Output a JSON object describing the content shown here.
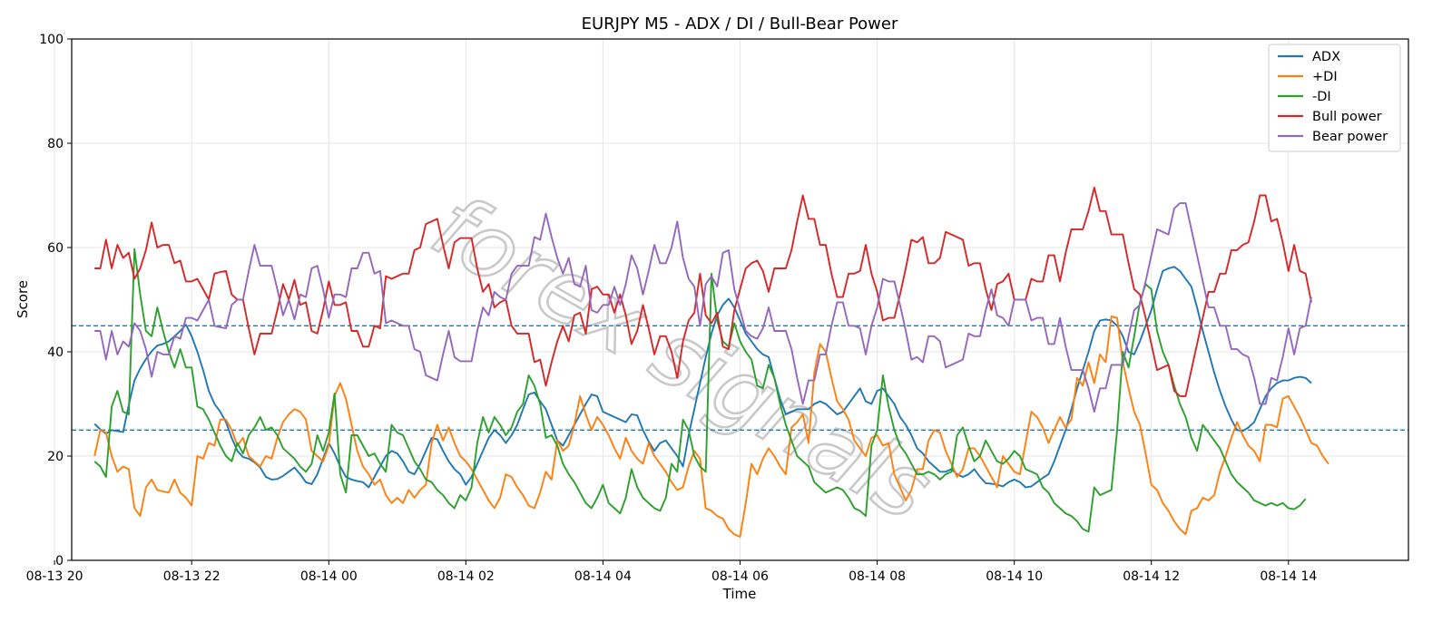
{
  "chart_data": {
    "type": "line",
    "title": "EURJPY M5 - ADX / DI / Bull-Bear Power",
    "xlabel": "Time",
    "ylabel": "Score",
    "ylim": [
      0,
      100
    ],
    "yticks": [
      0,
      20,
      40,
      60,
      80,
      100
    ],
    "x_start": "2025-08-13 20:35",
    "x_step_minutes": 5,
    "xlim": [
      "2025-08-13 20:15",
      "2025-08-14 15:45"
    ],
    "xticks": [
      {
        "t": "2025-08-13 20:00",
        "label": "08-13 20"
      },
      {
        "t": "2025-08-13 22:00",
        "label": "08-13 22"
      },
      {
        "t": "2025-08-14 00:00",
        "label": "08-14 00"
      },
      {
        "t": "2025-08-14 02:00",
        "label": "08-14 02"
      },
      {
        "t": "2025-08-14 04:00",
        "label": "08-14 04"
      },
      {
        "t": "2025-08-14 06:00",
        "label": "08-14 06"
      },
      {
        "t": "2025-08-14 08:00",
        "label": "08-14 08"
      },
      {
        "t": "2025-08-14 10:00",
        "label": "08-14 10"
      },
      {
        "t": "2025-08-14 12:00",
        "label": "08-14 12"
      },
      {
        "t": "2025-08-14 14:00",
        "label": "08-14 14"
      }
    ],
    "grid": true,
    "legend_position": "top-right",
    "reference_lines": [
      {
        "y": 45,
        "style": "dashed",
        "color": "#1f77b4"
      },
      {
        "y": 25,
        "style": "dashed",
        "color": "#1f77b4"
      }
    ],
    "watermark": "forex signals",
    "series": [
      {
        "name": "ADX",
        "color": "#1f77b4",
        "values": [
          26.2,
          25.1,
          24.3,
          25.0,
          24.8,
          24.6,
          29.8,
          34.5,
          36.8,
          38.6,
          40.1,
          41.2,
          41.5,
          42.0,
          43.0,
          44.0,
          45.2,
          43.0,
          40.0,
          36.5,
          32.5,
          30.0,
          28.5,
          26.5,
          23.5,
          21.0,
          19.8,
          19.5,
          18.8,
          17.8,
          16.0,
          15.5,
          15.6,
          16.2,
          17.0,
          17.8,
          16.5,
          15.0,
          14.6,
          16.5,
          19.5,
          22.5,
          20.5,
          18.0,
          16.0,
          15.5,
          15.2,
          15.0,
          14.0,
          16.0,
          18.0,
          20.0,
          21.0,
          20.5,
          19.0,
          17.0,
          16.5,
          18.5,
          21.0,
          23.5,
          23.2,
          21.0,
          19.0,
          17.5,
          16.5,
          14.5,
          16.0,
          18.5,
          21.0,
          23.5,
          25.0,
          24.0,
          22.5,
          24.0,
          26.0,
          29.0,
          31.8,
          32.2,
          30.5,
          29.0,
          26.0,
          23.0,
          22.0,
          24.0,
          26.0,
          28.0,
          30.0,
          31.8,
          31.5,
          28.5,
          28.0,
          27.5,
          27.0,
          26.5,
          28.0,
          27.8,
          25.0,
          22.8,
          21.0,
          22.5,
          23.0,
          21.5,
          20.0,
          18.0,
          24.0,
          29.0,
          34.0,
          39.0,
          43.5,
          47.0,
          49.0,
          50.2,
          48.5,
          46.0,
          43.5,
          42.0,
          40.5,
          39.5,
          39.0,
          35.0,
          31.0,
          28.0,
          28.5,
          29.0,
          29.0,
          29.0,
          30.0,
          30.5,
          30.0,
          29.0,
          28.0,
          28.5,
          30.0,
          31.5,
          33.0,
          30.5,
          30.0,
          32.5,
          33.0,
          31.5,
          30.0,
          27.5,
          26.0,
          24.0,
          21.5,
          20.5,
          19.0,
          18.0,
          17.0,
          17.0,
          17.5,
          16.5,
          16.0,
          16.5,
          17.5,
          16.0,
          14.8,
          14.7,
          14.5,
          14.2,
          15.0,
          15.5,
          15.0,
          14.0,
          14.2,
          15.0,
          15.8,
          16.5,
          19.0,
          22.0,
          25.0,
          29.0,
          33.0,
          36.5,
          40.0,
          44.0,
          46.0,
          46.2,
          46.0,
          45.0,
          43.0,
          40.0,
          39.5,
          42.0,
          45.0,
          48.0,
          52.0,
          55.5,
          56.0,
          56.3,
          55.5,
          54.0,
          52.5,
          48.5,
          44.0,
          40.0,
          36.0,
          32.5,
          29.5,
          27.0,
          25.0,
          24.8,
          25.5,
          26.5,
          29.0,
          31.5,
          33.0,
          34.0,
          34.5,
          34.5,
          35.0,
          35.2,
          35.0,
          34.0
        ]
      },
      {
        "name": "+DI",
        "color": "#ff7f0e",
        "values": [
          20.0,
          25.0,
          24.5,
          20.0,
          17.0,
          18.0,
          17.5,
          10.0,
          8.5,
          14.0,
          15.5,
          13.5,
          13.2,
          13.0,
          15.5,
          13.0,
          12.0,
          10.5,
          20.0,
          19.5,
          22.5,
          22.0,
          27.0,
          27.0,
          25.0,
          22.0,
          23.5,
          20.0,
          19.0,
          18.0,
          20.0,
          19.5,
          23.5,
          26.5,
          28.0,
          29.0,
          28.5,
          27.0,
          21.0,
          20.0,
          19.0,
          22.0,
          31.5,
          34.0,
          31.0,
          26.0,
          21.0,
          18.0,
          16.5,
          14.5,
          15.5,
          12.5,
          11.0,
          12.0,
          11.0,
          13.5,
          12.0,
          13.5,
          14.5,
          22.5,
          26.0,
          23.0,
          25.5,
          22.5,
          20.0,
          19.0,
          17.5,
          15.5,
          13.5,
          11.5,
          10.0,
          12.0,
          16.5,
          16.0,
          14.0,
          12.5,
          10.5,
          10.0,
          13.0,
          17.0,
          15.5,
          23.0,
          21.0,
          22.0,
          26.0,
          31.5,
          28.0,
          25.0,
          27.5,
          26.0,
          24.0,
          21.5,
          19.5,
          23.5,
          21.0,
          19.5,
          18.5,
          22.5,
          20.0,
          18.5,
          17.0,
          15.0,
          13.5,
          14.0,
          18.0,
          21.0,
          19.5,
          10.0,
          9.5,
          8.5,
          8.0,
          6.0,
          5.0,
          4.5,
          11.0,
          18.5,
          16.5,
          19.5,
          21.5,
          20.0,
          18.0,
          16.5,
          25.5,
          26.5,
          28.0,
          22.5,
          36.0,
          41.5,
          40.0,
          35.0,
          30.5,
          29.0,
          27.0,
          23.0,
          21.5,
          20.0,
          23.5,
          24.0,
          22.0,
          22.5,
          16.5,
          14.0,
          11.5,
          13.5,
          17.5,
          17.5,
          23.0,
          25.0,
          24.5,
          21.0,
          18.5,
          16.0,
          17.5,
          21.5,
          21.5,
          20.0,
          18.0,
          16.0,
          14.0,
          20.0,
          18.5,
          17.0,
          16.5,
          22.5,
          28.5,
          27.5,
          25.5,
          22.5,
          25.0,
          27.5,
          25.5,
          27.0,
          35.0,
          33.5,
          38.0,
          34.0,
          39.5,
          38.0,
          46.8,
          46.5,
          38.0,
          33.0,
          28.5,
          26.0,
          20.5,
          14.5,
          13.5,
          11.0,
          9.5,
          7.5,
          6.0,
          5.0,
          9.5,
          10.0,
          12.0,
          11.5,
          12.5,
          17.0,
          20.0,
          23.5,
          26.5,
          24.0,
          22.0,
          21.0,
          19.0,
          26.0,
          26.0,
          25.5,
          31.0,
          31.5,
          29.5,
          27.5,
          25.0,
          22.5,
          22.0,
          20.0,
          18.5
        ]
      },
      {
        "name": "-DI",
        "color": "#2ca02c",
        "values": [
          19.0,
          18.0,
          16.0,
          29.5,
          32.5,
          28.5,
          28.0,
          59.7,
          51.0,
          44.0,
          43.0,
          48.5,
          44.0,
          40.0,
          37.0,
          40.5,
          37.0,
          37.0,
          29.5,
          29.0,
          27.0,
          24.5,
          22.0,
          20.0,
          19.0,
          22.5,
          20.5,
          24.0,
          25.5,
          27.5,
          25.0,
          25.5,
          24.0,
          21.5,
          20.5,
          19.5,
          18.0,
          17.0,
          18.5,
          24.0,
          21.0,
          24.5,
          32.0,
          16.5,
          13.0,
          24.0,
          24.0,
          22.0,
          20.0,
          20.5,
          18.5,
          17.0,
          26.0,
          24.5,
          24.0,
          21.5,
          19.0,
          17.5,
          15.5,
          15.0,
          13.5,
          12.5,
          11.0,
          10.0,
          12.5,
          11.5,
          14.0,
          22.5,
          27.5,
          24.5,
          27.5,
          26.0,
          24.0,
          25.5,
          28.5,
          30.0,
          35.5,
          33.5,
          30.0,
          23.5,
          24.0,
          22.0,
          18.5,
          16.5,
          15.0,
          13.0,
          11.0,
          10.0,
          12.0,
          14.5,
          11.0,
          10.0,
          9.0,
          12.0,
          17.5,
          14.0,
          12.0,
          11.0,
          10.0,
          9.5,
          12.0,
          18.5,
          17.0,
          27.0,
          25.0,
          20.0,
          18.0,
          17.0,
          55.0,
          46.0,
          42.0,
          41.0,
          45.5,
          42.0,
          40.0,
          38.5,
          33.5,
          33.0,
          37.5,
          35.0,
          30.0,
          26.0,
          23.0,
          20.0,
          19.0,
          18.0,
          15.0,
          14.0,
          13.0,
          13.5,
          14.0,
          13.5,
          12.0,
          10.0,
          9.5,
          8.5,
          22.0,
          25.0,
          35.5,
          29.5,
          25.0,
          22.0,
          20.5,
          18.5,
          16.5,
          16.5,
          17.0,
          16.5,
          15.5,
          16.5,
          17.0,
          24.0,
          25.5,
          22.0,
          19.0,
          20.0,
          23.0,
          21.0,
          19.0,
          18.5,
          19.5,
          21.0,
          20.0,
          17.5,
          17.0,
          16.5,
          14.0,
          13.0,
          11.0,
          10.0,
          9.0,
          8.5,
          7.5,
          6.0,
          5.5,
          14.0,
          12.5,
          13.0,
          13.5,
          25.0,
          40.0,
          37.0,
          43.0,
          49.5,
          53.0,
          52.0,
          44.0,
          40.0,
          37.5,
          33.5,
          30.0,
          27.5,
          23.5,
          21.0,
          26.0,
          24.5,
          23.0,
          21.5,
          19.0,
          16.5,
          15.0,
          14.0,
          13.0,
          11.5,
          11.0,
          10.5,
          11.0,
          10.5,
          11.0,
          10.0,
          9.8,
          10.5,
          11.8
        ]
      },
      {
        "name": "Bull power",
        "color": "#d62728",
        "values": [
          56.0,
          56.0,
          61.5,
          56.0,
          60.5,
          58.0,
          59.0,
          54.0,
          56.0,
          59.5,
          64.8,
          60.0,
          60.5,
          60.5,
          57.0,
          57.5,
          53.5,
          53.5,
          54.0,
          52.0,
          50.0,
          55.0,
          55.3,
          55.5,
          51.0,
          50.0,
          50.0,
          44.5,
          39.5,
          43.5,
          43.5,
          43.5,
          48.0,
          53.0,
          50.0,
          53.8,
          49.0,
          49.5,
          44.0,
          43.5,
          48.0,
          53.5,
          49.0,
          49.0,
          49.5,
          44.0,
          44.0,
          41.0,
          41.0,
          45.0,
          44.5,
          54.5,
          54.0,
          54.5,
          55.0,
          55.0,
          59.5,
          60.0,
          64.5,
          65.0,
          65.5,
          60.5,
          56.0,
          61.0,
          61.8,
          61.8,
          61.8,
          56.0,
          51.5,
          53.0,
          48.5,
          49.5,
          50.0,
          45.0,
          43.5,
          43.5,
          43.5,
          38.0,
          38.5,
          33.5,
          38.0,
          42.0,
          45.0,
          42.0,
          47.0,
          47.5,
          43.5,
          52.0,
          52.5,
          51.0,
          51.0,
          47.5,
          51.0,
          47.0,
          41.5,
          44.0,
          49.0,
          44.5,
          39.5,
          43.0,
          43.0,
          40.0,
          35.0,
          42.0,
          46.0,
          47.5,
          55.0,
          47.0,
          45.5,
          47.5,
          41.0,
          40.5,
          48.0,
          52.0,
          56.0,
          57.0,
          57.5,
          55.5,
          51.5,
          56.0,
          56.0,
          56.0,
          59.5,
          65.0,
          70.0,
          65.5,
          65.5,
          60.5,
          60.5,
          55.0,
          50.5,
          50.5,
          55.0,
          55.0,
          55.5,
          60.5,
          55.0,
          51.5,
          46.0,
          46.5,
          46.5,
          51.0,
          56.0,
          61.5,
          61.0,
          62.0,
          57.0,
          57.0,
          58.0,
          63.0,
          62.5,
          62.0,
          61.5,
          56.5,
          57.0,
          57.0,
          52.0,
          48.0,
          53.0,
          53.5,
          55.0,
          50.0,
          50.0,
          50.0,
          54.0,
          53.5,
          53.5,
          58.5,
          58.5,
          53.5,
          59.0,
          63.5,
          63.5,
          63.5,
          67.0,
          71.5,
          67.0,
          67.0,
          62.5,
          62.5,
          62.5,
          57.0,
          52.0,
          51.0,
          46.5,
          41.5,
          36.5,
          37.0,
          37.5,
          32.5,
          31.5,
          31.5,
          36.5,
          41.5,
          46.5,
          51.5,
          51.5,
          55.0,
          55.0,
          59.5,
          59.5,
          60.5,
          61.0,
          65.0,
          70.0,
          70.0,
          65.0,
          65.5,
          61.0,
          55.5,
          60.5,
          55.5,
          55.0,
          49.5
        ]
      },
      {
        "name": "Bear power",
        "color": "#9467bd",
        "values": [
          44.0,
          44.0,
          38.5,
          44.0,
          39.5,
          42.0,
          41.0,
          45.5,
          44.0,
          40.5,
          35.2,
          40.0,
          39.5,
          39.5,
          43.0,
          42.5,
          46.5,
          46.5,
          46.0,
          48.0,
          50.0,
          45.0,
          44.7,
          44.5,
          49.0,
          50.0,
          50.0,
          55.5,
          60.5,
          56.5,
          56.5,
          56.5,
          52.0,
          47.0,
          50.0,
          46.2,
          51.0,
          50.5,
          56.0,
          56.5,
          52.0,
          46.5,
          51.0,
          51.0,
          50.5,
          56.0,
          56.0,
          59.0,
          59.0,
          55.0,
          55.5,
          45.5,
          46.0,
          45.5,
          45.0,
          45.0,
          40.5,
          40.0,
          35.5,
          35.0,
          34.5,
          39.5,
          44.0,
          39.0,
          38.2,
          38.2,
          38.2,
          44.0,
          48.5,
          47.0,
          51.5,
          50.5,
          50.0,
          55.0,
          56.5,
          56.5,
          56.5,
          62.0,
          61.5,
          66.5,
          62.0,
          58.0,
          55.0,
          58.0,
          53.0,
          52.5,
          56.5,
          48.0,
          47.5,
          49.0,
          49.0,
          52.5,
          49.0,
          53.0,
          58.5,
          56.0,
          51.0,
          55.5,
          60.5,
          57.0,
          57.0,
          60.0,
          65.0,
          58.0,
          54.0,
          52.5,
          45.0,
          53.0,
          54.5,
          52.5,
          59.0,
          59.5,
          52.0,
          48.0,
          44.0,
          43.0,
          42.5,
          44.5,
          48.5,
          44.0,
          44.0,
          44.0,
          40.5,
          35.0,
          30.0,
          34.5,
          34.5,
          39.5,
          39.5,
          45.0,
          49.5,
          49.5,
          45.0,
          45.0,
          44.5,
          39.5,
          45.0,
          48.5,
          54.0,
          53.5,
          53.5,
          49.0,
          44.0,
          38.5,
          39.0,
          38.0,
          43.0,
          43.0,
          42.0,
          37.0,
          37.5,
          38.0,
          38.5,
          43.5,
          43.0,
          43.0,
          48.0,
          52.0,
          47.0,
          46.5,
          45.0,
          50.0,
          50.0,
          50.0,
          46.0,
          46.5,
          46.5,
          41.5,
          41.5,
          46.5,
          41.0,
          36.5,
          36.5,
          36.5,
          33.0,
          28.5,
          33.0,
          33.0,
          37.5,
          37.5,
          37.5,
          43.0,
          48.0,
          49.0,
          53.5,
          58.5,
          63.5,
          63.0,
          62.5,
          67.5,
          68.5,
          68.5,
          63.5,
          58.5,
          53.5,
          48.5,
          48.5,
          45.0,
          45.0,
          40.5,
          40.5,
          39.5,
          39.0,
          35.0,
          30.0,
          30.0,
          35.0,
          34.5,
          39.0,
          44.5,
          39.5,
          44.5,
          45.0,
          50.5
        ]
      }
    ]
  }
}
